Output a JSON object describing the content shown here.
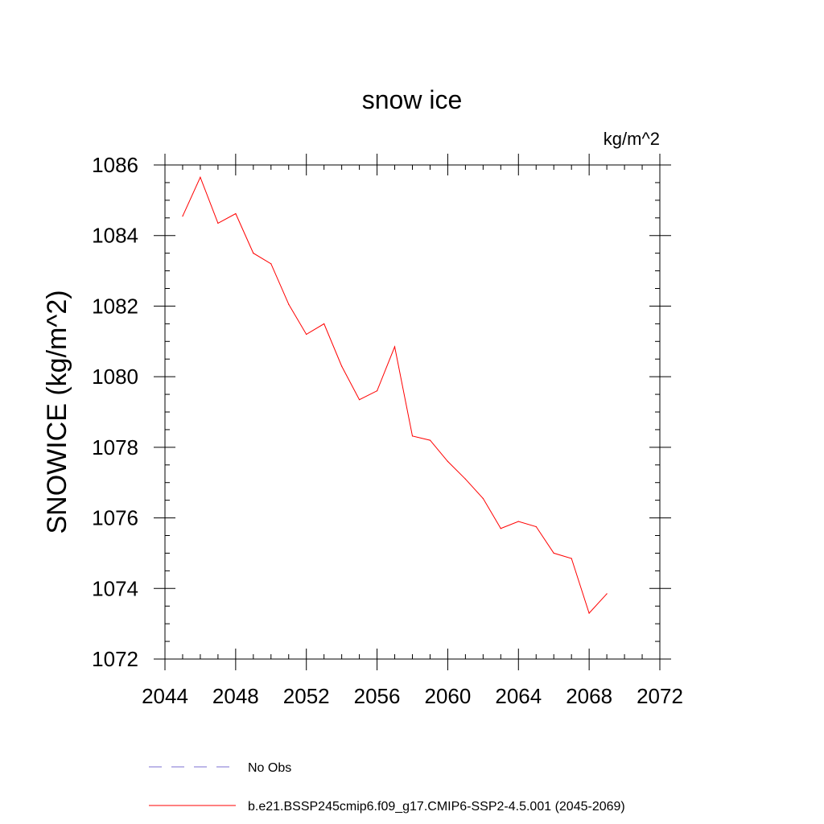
{
  "chart_data": {
    "type": "line",
    "title": "snow ice",
    "units_label": "kg/m^2",
    "ylabel": "SNOWICE  (kg/m^2)",
    "xlabel": "",
    "xlim": [
      2044,
      2072
    ],
    "ylim": [
      1072,
      1086
    ],
    "x_ticks": [
      2044,
      2048,
      2052,
      2056,
      2060,
      2064,
      2068,
      2072
    ],
    "y_ticks": [
      1072,
      1074,
      1076,
      1078,
      1080,
      1082,
      1084,
      1086
    ],
    "grid": false,
    "series": [
      {
        "name": "b.e21.BSSP245cmip6.f09_g17.CMIP6-SSP2-4.5.001 (2045-2069)",
        "color": "#ff0000",
        "style": "solid",
        "x": [
          2045,
          2046,
          2047,
          2048,
          2049,
          2050,
          2051,
          2052,
          2053,
          2054,
          2055,
          2056,
          2057,
          2058,
          2059,
          2060,
          2061,
          2062,
          2063,
          2064,
          2065,
          2066,
          2067,
          2068,
          2069
        ],
        "values": [
          1084.55,
          1085.65,
          1084.35,
          1084.62,
          1083.5,
          1083.2,
          1082.05,
          1081.2,
          1081.5,
          1080.3,
          1079.35,
          1079.6,
          1080.85,
          1078.32,
          1078.2,
          1077.6,
          1077.1,
          1076.55,
          1075.7,
          1075.9,
          1075.75,
          1075.0,
          1074.85,
          1073.3,
          1073.85
        ]
      }
    ],
    "legend": {
      "placement": "bottom",
      "entries": [
        {
          "label": "No Obs",
          "color": "#7b6fd0",
          "style": "dashed"
        },
        {
          "label": "b.e21.BSSP245cmip6.f09_g17.CMIP6-SSP2-4.5.001 (2045-2069)",
          "color": "#ff0000",
          "style": "solid"
        }
      ]
    }
  }
}
